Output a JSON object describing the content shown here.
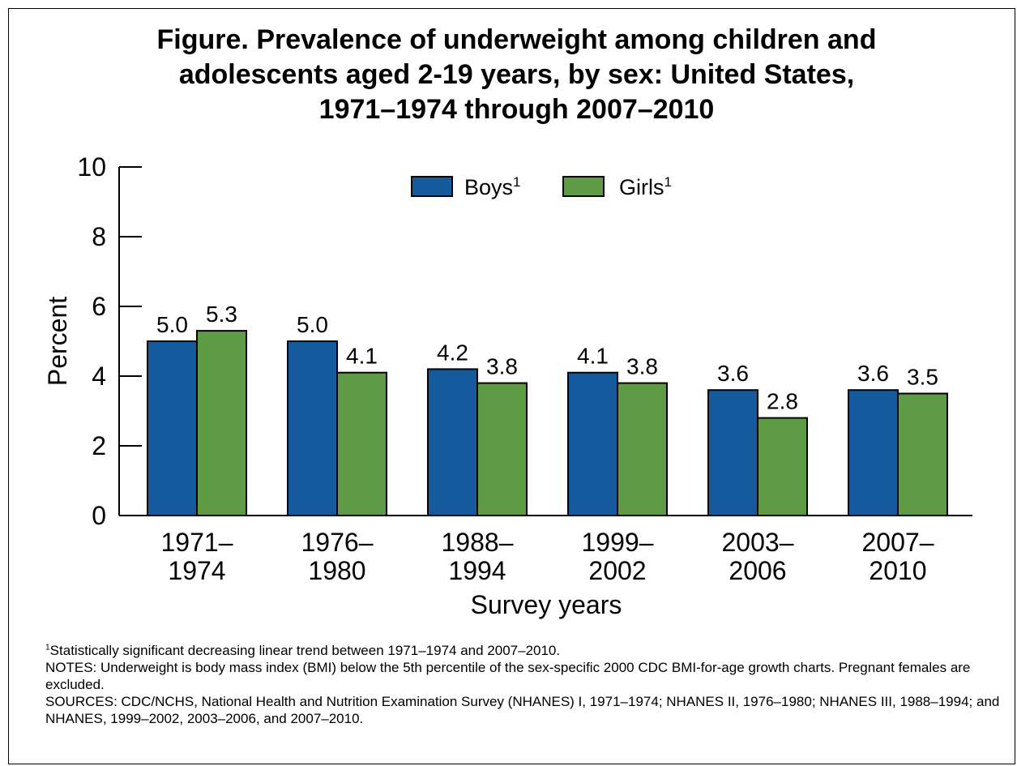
{
  "title_lines": [
    "Figure. Prevalence of underweight among children and",
    "adolescents aged 2-19 years, by sex: United States,",
    "1971–1974 through 2007–2010"
  ],
  "colors": {
    "boys": "#145a9c",
    "girls": "#5f9a44"
  },
  "chart_data": {
    "type": "bar",
    "categories": [
      [
        "1971–",
        "1974"
      ],
      [
        "1976–",
        "1980"
      ],
      [
        "1988–",
        "1994"
      ],
      [
        "1999–",
        "2002"
      ],
      [
        "2003–",
        "2006"
      ],
      [
        "2007–",
        "2010"
      ]
    ],
    "series": [
      {
        "name": "Boys",
        "footnote_mark": "1",
        "values": [
          5.0,
          5.0,
          4.2,
          4.1,
          3.6,
          3.6
        ],
        "labels": [
          "5.0",
          "5.0",
          "4.2",
          "4.1",
          "3.6",
          "3.6"
        ]
      },
      {
        "name": "Girls",
        "footnote_mark": "1",
        "values": [
          5.3,
          4.1,
          3.8,
          3.8,
          2.8,
          3.5
        ],
        "labels": [
          "5.3",
          "4.1",
          "3.8",
          "3.8",
          "2.8",
          "3.5"
        ]
      }
    ],
    "xlabel": "Survey years",
    "ylabel": "Percent",
    "ylim": [
      0,
      10
    ],
    "yticks": [
      "0",
      "2",
      "4",
      "6",
      "8",
      "10"
    ],
    "legend": "top-center",
    "grid": false
  },
  "notes": {
    "footnote_mark": "1",
    "footnote_text": "Statistically significant decreasing linear trend between 1971–1974 and 2007–2010.",
    "notes_text": "NOTES: Underweight is body mass index (BMI) below the 5th percentile of the sex-specific 2000 CDC BMI-for-age growth charts. Pregnant females are excluded.",
    "sources_text": "SOURCES: CDC/NCHS, National Health and Nutrition Examination Survey (NHANES) I, 1971–1974; NHANES II, 1976–1980; NHANES III, 1988–1994; and NHANES, 1999–2002, 2003–2006, and 2007–2010."
  }
}
